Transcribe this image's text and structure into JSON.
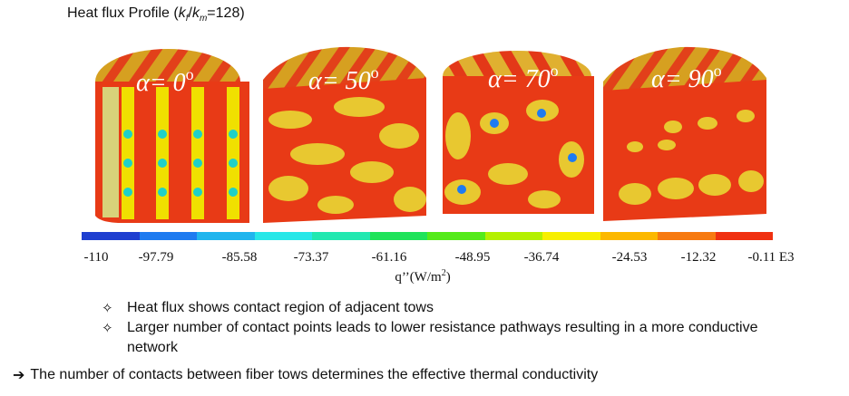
{
  "title": {
    "prefix": "Heat flux Profile (",
    "k_f_base": "k",
    "k_f_sub": "f",
    "slash": "/",
    "k_m_base": "k",
    "k_m_sub": "m",
    "ratio": "=128)"
  },
  "panels": [
    {
      "alpha_symbol": "α",
      "alpha_eq": "= 0",
      "deg": "o"
    },
    {
      "alpha_symbol": "α",
      "alpha_eq": "= 50",
      "deg": "o"
    },
    {
      "alpha_symbol": "α",
      "alpha_eq": "= 70",
      "deg": "o"
    },
    {
      "alpha_symbol": "α",
      "alpha_eq": "= 90",
      "deg": "o"
    }
  ],
  "colorbar": {
    "colors": [
      "#1f3fd0",
      "#1e7bf0",
      "#20b5ee",
      "#27e7e8",
      "#22e8b0",
      "#1fe35a",
      "#54ea1a",
      "#b4f000",
      "#f7ef00",
      "#fcb800",
      "#f77a10",
      "#f03010"
    ],
    "ticks": [
      "-110",
      "-97.79",
      "-85.58",
      "-73.37",
      "-61.16",
      "-48.95",
      "-36.74",
      "-24.53",
      "-12.32",
      "-0.11 E3"
    ],
    "label_base": "q’’(W/m",
    "label_sup": "2",
    "label_end": ")"
  },
  "bullets": [
    {
      "mark": "✧",
      "text": "Heat flux shows contact region of adjacent tows"
    },
    {
      "mark": "✧",
      "text": "Larger number of contact points leads to lower resistance pathways resulting in a more conductive network"
    }
  ],
  "conclusion": {
    "arrow": "➔",
    "text": "The number of contacts between fiber tows determines the effective thermal conductivity"
  }
}
